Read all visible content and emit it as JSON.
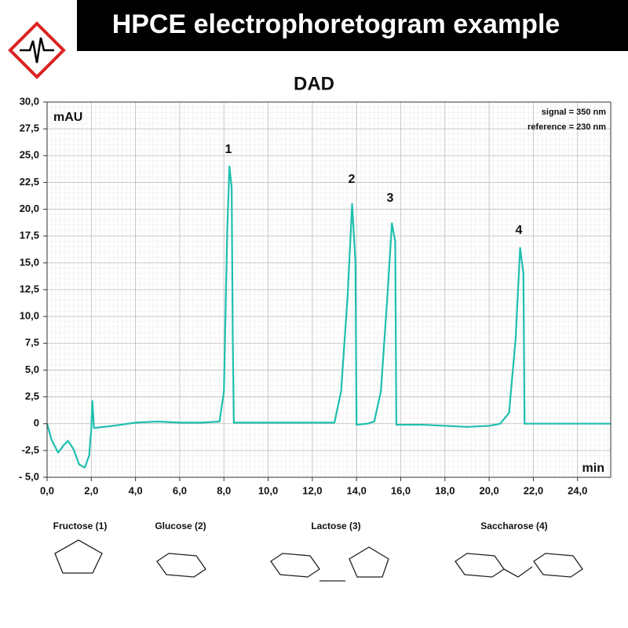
{
  "header": {
    "title": "HPCE electrophoretogram example"
  },
  "chart_data": {
    "type": "line",
    "title": "DAD",
    "y_label": "mAU",
    "x_label": "min",
    "annotations": [
      "signal = 350 nm",
      "reference = 230 nm"
    ],
    "peak_labels": [
      "1",
      "2",
      "3",
      "4"
    ],
    "xlim": [
      0,
      25.5
    ],
    "ylim": [
      -5,
      30
    ],
    "xticks": [
      {
        "value": 0,
        "label": "0,0"
      },
      {
        "value": 2,
        "label": "2,0"
      },
      {
        "value": 4,
        "label": "4,0"
      },
      {
        "value": 6,
        "label": "6,0"
      },
      {
        "value": 8,
        "label": "8,0"
      },
      {
        "value": 10,
        "label": "10,0"
      },
      {
        "value": 12,
        "label": "12,0"
      },
      {
        "value": 14,
        "label": "14,0"
      },
      {
        "value": 16,
        "label": "16,0"
      },
      {
        "value": 18,
        "label": "18,0"
      },
      {
        "value": 20,
        "label": "20,0"
      },
      {
        "value": 22,
        "label": "22,0"
      },
      {
        "value": 24,
        "label": "24,0"
      }
    ],
    "yticks": [
      {
        "value": -5,
        "label": "- 5,0"
      },
      {
        "value": -2.5,
        "label": "-2,5"
      },
      0,
      {
        "value": 2.5,
        "label": "2,5"
      },
      {
        "value": 5,
        "label": "5,0"
      },
      {
        "value": 7.5,
        "label": "7,5"
      },
      {
        "value": 10,
        "label": "10,0"
      },
      {
        "value": 12.5,
        "label": "12,5"
      },
      {
        "value": 15,
        "label": "15,0"
      },
      {
        "value": 17.5,
        "label": "17,5"
      },
      {
        "value": 20,
        "label": "20,0"
      },
      {
        "value": 22.5,
        "label": "22,5"
      },
      {
        "value": 25,
        "label": "25,0"
      },
      {
        "value": 27.5,
        "label": "27,5"
      },
      {
        "value": 30,
        "label": "30,0"
      }
    ],
    "grid": true,
    "series": [
      {
        "color": "#1fbfb0",
        "x": [
          0,
          0.2,
          0.5,
          0.75,
          0.95,
          1.2,
          1.45,
          1.7,
          1.9,
          2.0,
          2.05,
          2.12,
          3,
          4,
          5,
          6,
          7,
          7.8,
          8.0,
          8.15,
          8.25,
          8.35,
          8.4,
          8.45,
          9,
          12,
          13.0,
          13.3,
          13.6,
          13.8,
          13.95,
          14.0,
          14.5,
          14.8,
          15.1,
          15.4,
          15.6,
          15.75,
          15.8,
          17,
          18,
          19,
          20,
          20.5,
          20.9,
          21.2,
          21.4,
          21.55,
          21.6,
          23,
          25.5
        ],
        "values": [
          0,
          -1.5,
          -2.7,
          -2.0,
          -1.6,
          -2.4,
          -3.8,
          -4.1,
          -3.0,
          -0.5,
          2.1,
          -0.4,
          -0.2,
          0.1,
          0.2,
          0.1,
          0.1,
          0.2,
          3,
          18,
          24,
          22,
          8,
          0.1,
          0.1,
          0.1,
          0.1,
          3,
          12,
          20.5,
          15,
          -0.1,
          0,
          0.2,
          3,
          12,
          18.7,
          17,
          -0.1,
          -0.1,
          -0.2,
          -0.3,
          -0.2,
          0,
          1,
          8,
          16.4,
          14,
          0,
          0,
          0
        ]
      }
    ]
  },
  "compounds": [
    "Fructose (1)",
    "Glucose (2)",
    "Lactose (3)",
    "Saccharose (4)"
  ]
}
